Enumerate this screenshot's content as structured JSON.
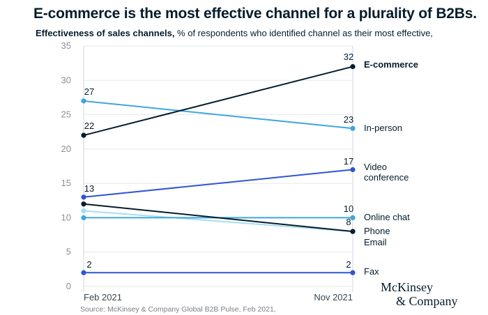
{
  "title": "E-commerce is the most effective channel for a plurality of B2Bs.",
  "subtitle_bold": "Effectiveness of sales channels,",
  "subtitle_rest": " % of respondents who identified channel as their  most effective,",
  "source": "Source: McKinsey & Company Global B2B Pulse, Feb 2021,",
  "logo": {
    "line1": "McKinsey",
    "line2": "& Company"
  },
  "chart_data": {
    "type": "line",
    "categories": [
      "Feb 2021",
      "Nov 2021"
    ],
    "ylim": [
      0,
      35
    ],
    "yticks": [
      "0",
      "5",
      "10",
      "15",
      "20",
      "25",
      "30",
      "35"
    ],
    "series": [
      {
        "name": "E-commerce",
        "label_lines": [
          "E-commerce"
        ],
        "values": [
          22,
          32
        ],
        "color": "#051c2c",
        "bold": true,
        "show_start": "22",
        "show_end": "32"
      },
      {
        "name": "In-person",
        "label_lines": [
          "In-person"
        ],
        "values": [
          27,
          23
        ],
        "color": "#3ea6dd",
        "bold": false,
        "show_start": "27",
        "show_end": "23"
      },
      {
        "name": "Video conference",
        "label_lines": [
          "Video",
          "conference"
        ],
        "values": [
          13,
          17
        ],
        "color": "#2f55d4",
        "bold": false,
        "show_start": "13",
        "show_end": "17"
      },
      {
        "name": "Online chat",
        "label_lines": [
          "Online chat"
        ],
        "values": [
          10,
          10
        ],
        "color": "#3ea6dd",
        "bold": false,
        "show_start": "",
        "show_end": "10"
      },
      {
        "name": "Phone",
        "label_lines": [
          "Phone"
        ],
        "values": [
          12,
          8
        ],
        "color": "#051c2c",
        "bold": false,
        "show_start": "",
        "show_end": "8"
      },
      {
        "name": "Email",
        "label_lines": [
          "Email"
        ],
        "values": [
          11,
          8
        ],
        "color": "#a8dcf2",
        "bold": false,
        "show_start": "",
        "show_end": ""
      },
      {
        "name": "Fax",
        "label_lines": [
          "Fax"
        ],
        "values": [
          2,
          2
        ],
        "color": "#2f55d4",
        "bold": false,
        "show_start": "2",
        "show_end": "2"
      }
    ]
  }
}
